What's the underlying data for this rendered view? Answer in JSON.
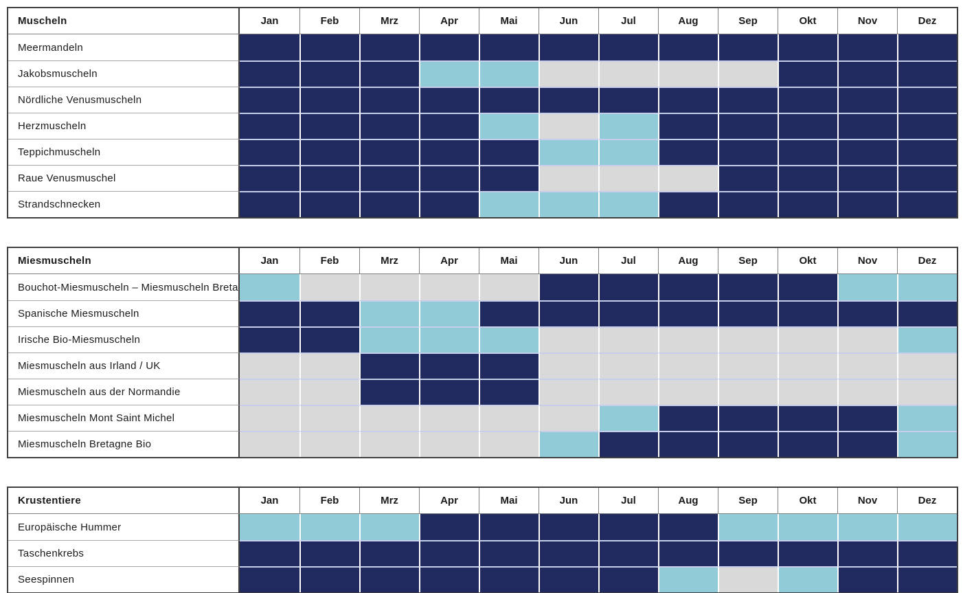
{
  "cell_colors": {
    "d": "#212A5E",
    "l": "#92CBD8",
    "g": "#D9D9D9"
  },
  "cell_color_names": {
    "d": "dark-navy",
    "l": "light-blue",
    "g": "light-gray"
  },
  "chart_data": [
    {
      "type": "heatmap",
      "title": "Muscheln",
      "categories": [
        "Jan",
        "Feb",
        "Mrz",
        "Apr",
        "Mai",
        "Jun",
        "Jul",
        "Aug",
        "Sep",
        "Okt",
        "Nov",
        "Dez"
      ],
      "rows": [
        {
          "label": "Meermandeln",
          "cells": [
            "d",
            "d",
            "d",
            "d",
            "d",
            "d",
            "d",
            "d",
            "d",
            "d",
            "d",
            "d"
          ]
        },
        {
          "label": "Jakobsmuscheln",
          "cells": [
            "d",
            "d",
            "d",
            "l",
            "l",
            "g",
            "g",
            "g",
            "g",
            "d",
            "d",
            "d"
          ]
        },
        {
          "label": "Nördliche Venusmuscheln",
          "cells": [
            "d",
            "d",
            "d",
            "d",
            "d",
            "d",
            "d",
            "d",
            "d",
            "d",
            "d",
            "d"
          ]
        },
        {
          "label": "Herzmuscheln",
          "cells": [
            "d",
            "d",
            "d",
            "d",
            "l",
            "g",
            "l",
            "d",
            "d",
            "d",
            "d",
            "d"
          ]
        },
        {
          "label": "Teppichmuscheln",
          "cells": [
            "d",
            "d",
            "d",
            "d",
            "d",
            "l",
            "l",
            "d",
            "d",
            "d",
            "d",
            "d"
          ]
        },
        {
          "label": "Raue Venusmuschel",
          "cells": [
            "d",
            "d",
            "d",
            "d",
            "d",
            "g",
            "g",
            "g",
            "d",
            "d",
            "d",
            "d"
          ]
        },
        {
          "label": "Strandschnecken",
          "cells": [
            "d",
            "d",
            "d",
            "d",
            "l",
            "l",
            "l",
            "d",
            "d",
            "d",
            "d",
            "d"
          ]
        }
      ]
    },
    {
      "type": "heatmap",
      "title": "Miesmuscheln",
      "categories": [
        "Jan",
        "Feb",
        "Mrz",
        "Apr",
        "Mai",
        "Jun",
        "Jul",
        "Aug",
        "Sep",
        "Okt",
        "Nov",
        "Dez"
      ],
      "rows": [
        {
          "label": "Bouchot-Miesmuscheln – Miesmuscheln Bretagne",
          "cells": [
            "l",
            "g",
            "g",
            "g",
            "g",
            "d",
            "d",
            "d",
            "d",
            "d",
            "l",
            "l"
          ]
        },
        {
          "label": "Spanische Miesmuscheln",
          "cells": [
            "d",
            "d",
            "l",
            "l",
            "d",
            "d",
            "d",
            "d",
            "d",
            "d",
            "d",
            "d"
          ]
        },
        {
          "label": "Irische Bio-Miesmuscheln",
          "cells": [
            "d",
            "d",
            "l",
            "l",
            "l",
            "g",
            "g",
            "g",
            "g",
            "g",
            "g",
            "l"
          ]
        },
        {
          "label": "Miesmuscheln aus Irland / UK",
          "cells": [
            "g",
            "g",
            "d",
            "d",
            "d",
            "g",
            "g",
            "g",
            "g",
            "g",
            "g",
            "g"
          ]
        },
        {
          "label": "Miesmuscheln aus der Normandie",
          "cells": [
            "g",
            "g",
            "d",
            "d",
            "d",
            "g",
            "g",
            "g",
            "g",
            "g",
            "g",
            "g"
          ]
        },
        {
          "label": "Miesmuscheln Mont Saint Michel",
          "cells": [
            "g",
            "g",
            "g",
            "g",
            "g",
            "g",
            "l",
            "d",
            "d",
            "d",
            "d",
            "l"
          ]
        },
        {
          "label": "Miesmuscheln Bretagne Bio",
          "cells": [
            "g",
            "g",
            "g",
            "g",
            "g",
            "l",
            "d",
            "d",
            "d",
            "d",
            "d",
            "l"
          ]
        }
      ]
    },
    {
      "type": "heatmap",
      "title": "Krustentiere",
      "categories": [
        "Jan",
        "Feb",
        "Mrz",
        "Apr",
        "Mai",
        "Jun",
        "Jul",
        "Aug",
        "Sep",
        "Okt",
        "Nov",
        "Dez"
      ],
      "rows": [
        {
          "label": "Europäische Hummer",
          "cells": [
            "l",
            "l",
            "l",
            "d",
            "d",
            "d",
            "d",
            "d",
            "l",
            "l",
            "l",
            "l"
          ]
        },
        {
          "label": "Taschenkrebs",
          "cells": [
            "d",
            "d",
            "d",
            "d",
            "d",
            "d",
            "d",
            "d",
            "d",
            "d",
            "d",
            "d"
          ]
        },
        {
          "label": "Seespinnen",
          "cells": [
            "d",
            "d",
            "d",
            "d",
            "d",
            "d",
            "d",
            "l",
            "g",
            "l",
            "d",
            "d"
          ]
        }
      ]
    }
  ]
}
